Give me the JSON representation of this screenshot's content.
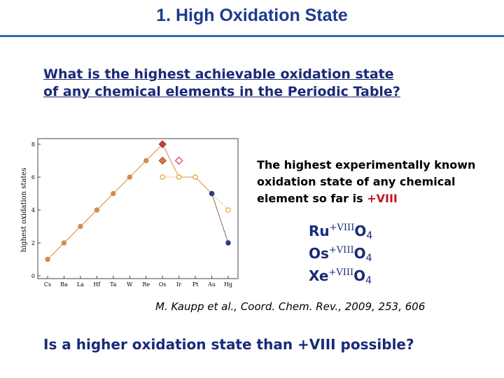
{
  "slide": {
    "title": "1. High Oxidation State",
    "question_line1": "What is the highest achievable oxidation state",
    "question_line2": "of any chemical elements in the Periodic Table?",
    "statement_text": "The highest experimentally known oxidation state of any chemical element so far is ",
    "statement_highlight": "+VIII",
    "formulas": [
      {
        "element": "Ru",
        "oxidation": "+VIII",
        "ligand": "O",
        "count": "4"
      },
      {
        "element": "Os",
        "oxidation": "+VIII",
        "ligand": "O",
        "count": "4"
      },
      {
        "element": "Xe",
        "oxidation": "+VIII",
        "ligand": "O",
        "count": "4"
      }
    ],
    "citation": "M. Kaupp et al., Coord. Chem. Rev., 2009, 253, 606",
    "closing_question": "Is a higher oxidation state than +VIII possible?"
  },
  "colors": {
    "title": "#1f3a8f",
    "rule": "#2e6db4",
    "body_blue": "#1a2a78",
    "highlight_red": "#c0171f",
    "known_series": "#d98a44",
    "predicted_series": "#e0a020",
    "theory_series": "#c94040",
    "hg_point": "#2a3a8a"
  },
  "chart_data": {
    "type": "scatter",
    "ylabel": "highest oxidation states",
    "categories": [
      "Cs",
      "Ba",
      "La",
      "Hf",
      "Ta",
      "W",
      "Re",
      "Os",
      "Ir",
      "Pt",
      "Au",
      "Hg"
    ],
    "ylim": [
      0,
      8
    ],
    "yticks": [
      "0",
      "2",
      "4",
      "6",
      "8"
    ],
    "series": [
      {
        "marker": "filled-circle",
        "color": "#d98a44",
        "line": "solid",
        "values": [
          1,
          2,
          3,
          4,
          5,
          6,
          7,
          8,
          6,
          6,
          5,
          2
        ]
      },
      {
        "marker": "open-circle",
        "color": "#e0a020",
        "line": "dotted",
        "values": [
          null,
          null,
          null,
          null,
          null,
          null,
          null,
          6,
          6,
          6,
          5,
          4
        ]
      },
      {
        "marker": "filled-diamond",
        "color": "#c94040",
        "line": "none",
        "values": [
          null,
          null,
          null,
          null,
          null,
          null,
          null,
          8,
          null,
          null,
          null,
          null
        ]
      },
      {
        "marker": "filled-diamond",
        "color": "#e07a3a",
        "line": "none",
        "values": [
          null,
          null,
          null,
          null,
          null,
          null,
          null,
          7,
          null,
          null,
          null,
          null
        ]
      },
      {
        "marker": "open-diamond",
        "color": "#c94040",
        "line": "none",
        "values": [
          null,
          null,
          null,
          null,
          null,
          null,
          null,
          null,
          7,
          null,
          null,
          null
        ]
      },
      {
        "marker": "filled-circle",
        "color": "#2a3a8a",
        "line": "dotted",
        "values": [
          null,
          null,
          null,
          null,
          null,
          null,
          null,
          null,
          null,
          null,
          5,
          2
        ]
      }
    ]
  }
}
